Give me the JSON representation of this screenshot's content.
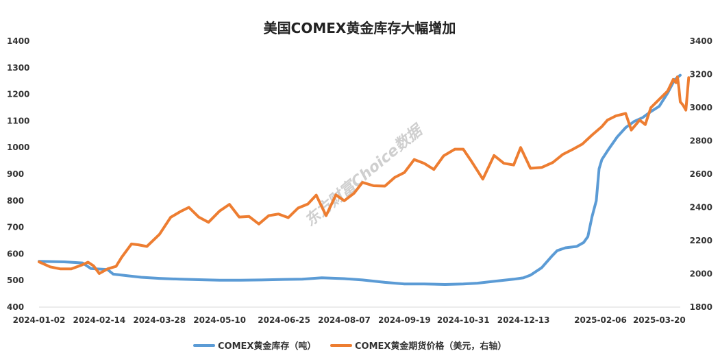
{
  "chart_data": {
    "type": "line",
    "title": "美国COMEX黄金库存大幅增加",
    "watermark": "东方财富Choice数据",
    "x_tick_labels": [
      "2024-01-02",
      "2024-02-14",
      "2024-03-28",
      "2024-05-10",
      "2024-06-25",
      "2024-08-07",
      "2024-09-19",
      "2024-10-31",
      "2024-12-13",
      "2025-02-06",
      "2025-03-20"
    ],
    "x_range": [
      "2024-01-02",
      "2025-04-04"
    ],
    "y_left": {
      "ticks": [
        400,
        500,
        600,
        700,
        800,
        900,
        1000,
        1100,
        1200,
        1300,
        1400
      ],
      "range": [
        400,
        1400
      ]
    },
    "y_right": {
      "ticks": [
        1800,
        2000,
        2200,
        2400,
        2600,
        2800,
        3000,
        3200,
        3400
      ],
      "range": [
        1800,
        3400
      ]
    },
    "legend_position": "bottom",
    "grid": false,
    "series": [
      {
        "name": "COMEX黄金库存（吨）",
        "axis": "left",
        "color": "#5b9bd5",
        "points": [
          [
            "2024-01-02",
            572
          ],
          [
            "2024-01-20",
            570
          ],
          [
            "2024-02-02",
            566
          ],
          [
            "2024-02-08",
            545
          ],
          [
            "2024-02-20",
            541
          ],
          [
            "2024-02-24",
            524
          ],
          [
            "2024-03-05",
            518
          ],
          [
            "2024-03-15",
            512
          ],
          [
            "2024-03-28",
            508
          ],
          [
            "2024-04-12",
            505
          ],
          [
            "2024-04-25",
            503
          ],
          [
            "2024-05-10",
            501
          ],
          [
            "2024-05-25",
            501
          ],
          [
            "2024-06-08",
            502
          ],
          [
            "2024-06-25",
            504
          ],
          [
            "2024-07-08",
            505
          ],
          [
            "2024-07-22",
            510
          ],
          [
            "2024-08-07",
            507
          ],
          [
            "2024-08-20",
            502
          ],
          [
            "2024-09-05",
            493
          ],
          [
            "2024-09-19",
            487
          ],
          [
            "2024-10-03",
            487
          ],
          [
            "2024-10-18",
            485
          ],
          [
            "2024-10-31",
            487
          ],
          [
            "2024-11-10",
            490
          ],
          [
            "2024-11-22",
            497
          ],
          [
            "2024-12-06",
            505
          ],
          [
            "2024-12-13",
            510
          ],
          [
            "2024-12-18",
            520
          ],
          [
            "2024-12-26",
            548
          ],
          [
            "2025-01-02",
            590
          ],
          [
            "2025-01-06",
            612
          ],
          [
            "2025-01-12",
            623
          ],
          [
            "2025-01-20",
            628
          ],
          [
            "2025-01-25",
            643
          ],
          [
            "2025-01-28",
            665
          ],
          [
            "2025-01-31",
            740
          ],
          [
            "2025-02-03",
            800
          ],
          [
            "2025-02-05",
            920
          ],
          [
            "2025-02-07",
            955
          ],
          [
            "2025-02-12",
            995
          ],
          [
            "2025-02-18",
            1040
          ],
          [
            "2025-02-24",
            1075
          ],
          [
            "2025-03-02",
            1098
          ],
          [
            "2025-03-08",
            1112
          ],
          [
            "2025-03-14",
            1135
          ],
          [
            "2025-03-20",
            1155
          ],
          [
            "2025-03-26",
            1205
          ],
          [
            "2025-03-31",
            1255
          ],
          [
            "2025-04-04",
            1272
          ]
        ]
      },
      {
        "name": "COMEX黄金期货价格（美元，右轴）",
        "axis": "right",
        "color": "#ed7d31",
        "points": [
          [
            "2024-01-02",
            2072
          ],
          [
            "2024-01-10",
            2042
          ],
          [
            "2024-01-17",
            2030
          ],
          [
            "2024-01-25",
            2030
          ],
          [
            "2024-02-02",
            2055
          ],
          [
            "2024-02-06",
            2070
          ],
          [
            "2024-02-10",
            2048
          ],
          [
            "2024-02-14",
            2002
          ],
          [
            "2024-02-20",
            2030
          ],
          [
            "2024-02-26",
            2045
          ],
          [
            "2024-03-01",
            2100
          ],
          [
            "2024-03-08",
            2180
          ],
          [
            "2024-03-13",
            2175
          ],
          [
            "2024-03-19",
            2165
          ],
          [
            "2024-03-28",
            2238
          ],
          [
            "2024-04-05",
            2340
          ],
          [
            "2024-04-12",
            2375
          ],
          [
            "2024-04-18",
            2400
          ],
          [
            "2024-04-25",
            2342
          ],
          [
            "2024-05-02",
            2310
          ],
          [
            "2024-05-10",
            2378
          ],
          [
            "2024-05-17",
            2418
          ],
          [
            "2024-05-24",
            2342
          ],
          [
            "2024-05-31",
            2345
          ],
          [
            "2024-06-07",
            2300
          ],
          [
            "2024-06-14",
            2350
          ],
          [
            "2024-06-21",
            2360
          ],
          [
            "2024-06-28",
            2338
          ],
          [
            "2024-07-05",
            2396
          ],
          [
            "2024-07-12",
            2420
          ],
          [
            "2024-07-18",
            2474
          ],
          [
            "2024-07-25",
            2350
          ],
          [
            "2024-08-01",
            2475
          ],
          [
            "2024-08-07",
            2440
          ],
          [
            "2024-08-14",
            2485
          ],
          [
            "2024-08-20",
            2550
          ],
          [
            "2024-08-28",
            2530
          ],
          [
            "2024-09-05",
            2528
          ],
          [
            "2024-09-12",
            2580
          ],
          [
            "2024-09-19",
            2610
          ],
          [
            "2024-09-26",
            2688
          ],
          [
            "2024-10-03",
            2665
          ],
          [
            "2024-10-10",
            2628
          ],
          [
            "2024-10-17",
            2710
          ],
          [
            "2024-10-25",
            2750
          ],
          [
            "2024-10-31",
            2750
          ],
          [
            "2024-11-06",
            2675
          ],
          [
            "2024-11-14",
            2570
          ],
          [
            "2024-11-22",
            2712
          ],
          [
            "2024-11-29",
            2665
          ],
          [
            "2024-12-06",
            2655
          ],
          [
            "2024-12-11",
            2760
          ],
          [
            "2024-12-18",
            2635
          ],
          [
            "2024-12-26",
            2640
          ],
          [
            "2025-01-03",
            2670
          ],
          [
            "2025-01-10",
            2718
          ],
          [
            "2025-01-17",
            2748
          ],
          [
            "2025-01-24",
            2780
          ],
          [
            "2025-01-31",
            2835
          ],
          [
            "2025-02-07",
            2886
          ],
          [
            "2025-02-11",
            2925
          ],
          [
            "2025-02-17",
            2950
          ],
          [
            "2025-02-24",
            2965
          ],
          [
            "2025-02-28",
            2865
          ],
          [
            "2025-03-06",
            2925
          ],
          [
            "2025-03-10",
            2898
          ],
          [
            "2025-03-14",
            3000
          ],
          [
            "2025-03-20",
            3050
          ],
          [
            "2025-03-26",
            3100
          ],
          [
            "2025-03-30",
            3170
          ],
          [
            "2025-04-01",
            3150
          ],
          [
            "2025-04-02",
            3185
          ],
          [
            "2025-04-03",
            3120
          ],
          [
            "2025-04-04",
            3035
          ],
          [
            "2025-04-06",
            3015
          ],
          [
            "2025-04-08",
            2985
          ],
          [
            "2025-04-10",
            3180
          ]
        ]
      }
    ]
  }
}
